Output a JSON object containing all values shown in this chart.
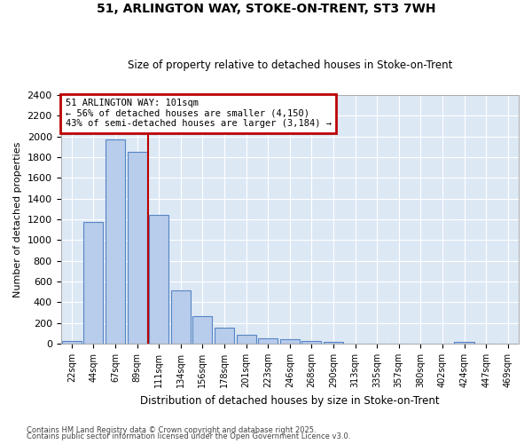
{
  "title": "51, ARLINGTON WAY, STOKE-ON-TRENT, ST3 7WH",
  "subtitle": "Size of property relative to detached houses in Stoke-on-Trent",
  "xlabel": "Distribution of detached houses by size in Stoke-on-Trent",
  "ylabel": "Number of detached properties",
  "bar_labels": [
    "22sqm",
    "44sqm",
    "67sqm",
    "89sqm",
    "111sqm",
    "134sqm",
    "156sqm",
    "178sqm",
    "201sqm",
    "223sqm",
    "246sqm",
    "268sqm",
    "290sqm",
    "313sqm",
    "335sqm",
    "357sqm",
    "380sqm",
    "402sqm",
    "424sqm",
    "447sqm",
    "469sqm"
  ],
  "bar_values": [
    30,
    1175,
    1975,
    1855,
    1240,
    515,
    270,
    155,
    90,
    50,
    45,
    25,
    20,
    0,
    0,
    0,
    0,
    0,
    15,
    0,
    0
  ],
  "bar_color": "#b8cceb",
  "bar_edge_color": "#5585c5",
  "background_color": "#dde8f5",
  "grid_color": "#ffffff",
  "vline_x": 3.5,
  "vline_color": "#bb0000",
  "annotation_line1": "51 ARLINGTON WAY: 101sqm",
  "annotation_line2": "← 56% of detached houses are smaller (4,150)",
  "annotation_line3": "43% of semi-detached houses are larger (3,184) →",
  "annotation_box_color": "#bb0000",
  "ylim": [
    0,
    2400
  ],
  "yticks": [
    0,
    200,
    400,
    600,
    800,
    1000,
    1200,
    1400,
    1600,
    1800,
    2000,
    2200,
    2400
  ],
  "footer_line1": "Contains HM Land Registry data © Crown copyright and database right 2025.",
  "footer_line2": "Contains public sector information licensed under the Open Government Licence v3.0."
}
